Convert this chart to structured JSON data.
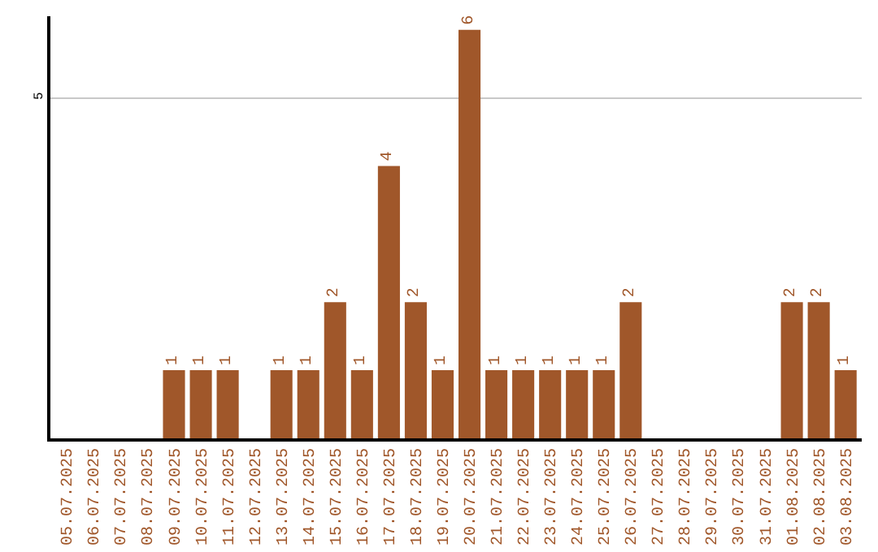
{
  "chart_data": {
    "type": "bar",
    "categories": [
      "05.07.2025",
      "06.07.2025",
      "07.07.2025",
      "08.07.2025",
      "09.07.2025",
      "10.07.2025",
      "11.07.2025",
      "12.07.2025",
      "13.07.2025",
      "14.07.2025",
      "15.07.2025",
      "16.07.2025",
      "17.07.2025",
      "18.07.2025",
      "19.07.2025",
      "20.07.2025",
      "21.07.2025",
      "22.07.2025",
      "23.07.2025",
      "24.07.2025",
      "25.07.2025",
      "26.07.2025",
      "27.07.2025",
      "28.07.2025",
      "29.07.2025",
      "30.07.2025",
      "31.07.2025",
      "01.08.2025",
      "02.08.2025",
      "03.08.2025"
    ],
    "values": [
      0,
      0,
      0,
      0,
      1,
      1,
      1,
      0,
      1,
      1,
      2,
      1,
      4,
      2,
      1,
      6,
      1,
      1,
      1,
      1,
      1,
      2,
      0,
      0,
      0,
      0,
      0,
      2,
      2,
      1
    ],
    "value_labels": [
      null,
      null,
      null,
      null,
      "1",
      "1",
      "1",
      null,
      "1",
      "1",
      "2",
      "1",
      "4",
      "2",
      "1",
      "6",
      "1",
      "1",
      "1",
      "1",
      "1",
      "2",
      null,
      null,
      null,
      null,
      null,
      "2",
      "2",
      "1"
    ],
    "color": "#a0572a",
    "ylim": [
      0,
      6.2
    ],
    "yticks": [
      5
    ],
    "grid": "y"
  }
}
